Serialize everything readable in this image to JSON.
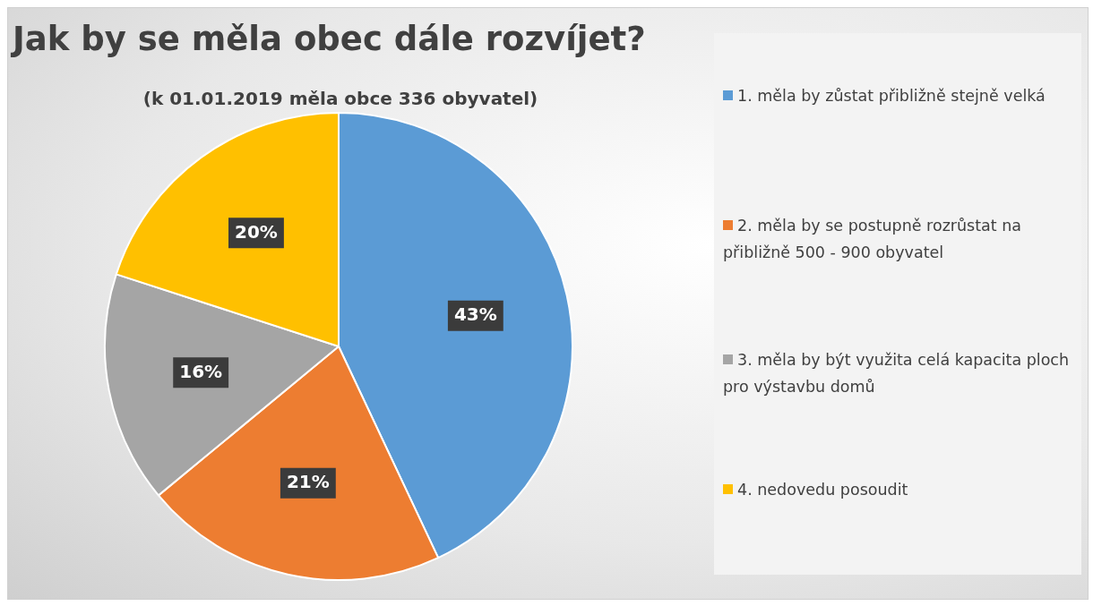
{
  "chart_data": {
    "type": "pie",
    "title": "Jak by se měla obec dále rozvíjet?",
    "subtitle": "(k 01.01.2019 měla obce 336 obyvatel)",
    "categories": [
      "1. měla by zůstat přibližně stejně velká",
      "2. měla by se postupně rozrůstat na přibližně 500 - 900 obyvatel",
      "3. měla by být využita celá kapacita ploch pro výstavbu domů",
      "4. nedovedu posoudit"
    ],
    "values": [
      43,
      21,
      16,
      20
    ],
    "colors": [
      "#5b9bd5",
      "#ed7d31",
      "#a5a5a5",
      "#ffc000"
    ],
    "value_labels": [
      "43%",
      "21%",
      "16%",
      "20%"
    ],
    "legend": "right"
  }
}
